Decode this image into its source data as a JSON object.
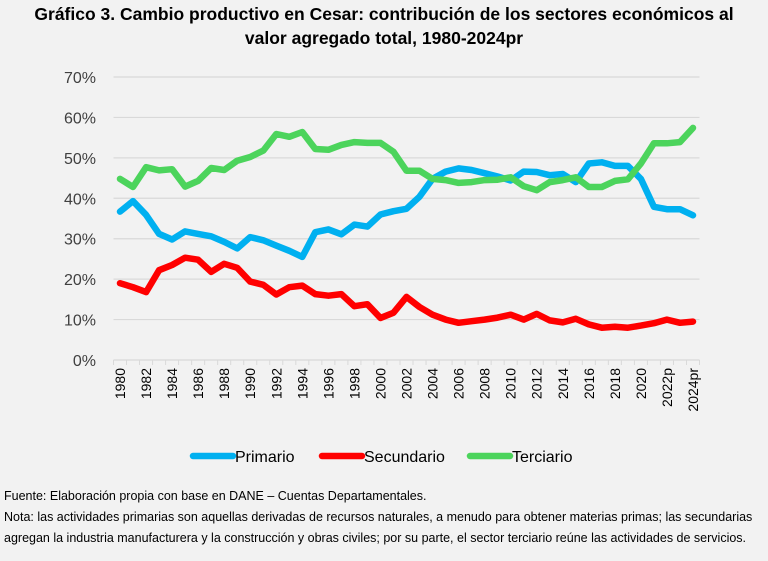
{
  "title_line1": "Gráfico 3. Cambio productivo en Cesar: contribución de los sectores económicos al",
  "title_line2": "valor agregado total, 1980-2024pr",
  "source": "Fuente: Elaboración propia con base en DANE – Cuentas Departamentales.",
  "note": "Nota: las actividades primarias son aquellas derivadas de recursos naturales, a menudo para obtener materias primas; las secundarias agregan la industria manufacturera y la construcción y obras civiles; por su parte, el sector terciario reúne las actividades de servicios.",
  "chart_data": {
    "type": "line",
    "title": "Gráfico 3. Cambio productivo en Cesar: contribución de los sectores económicos al valor agregado total, 1980-2024pr",
    "xlabel": "",
    "ylabel": "",
    "ylim": [
      0,
      70
    ],
    "y_ticks": [
      "0%",
      "10%",
      "20%",
      "30%",
      "40%",
      "50%",
      "60%",
      "70%"
    ],
    "y_tick_values": [
      0,
      10,
      20,
      30,
      40,
      50,
      60,
      70
    ],
    "grid": true,
    "legend_position": "bottom",
    "x": [
      "1980",
      "1981",
      "1982",
      "1983",
      "1984",
      "1985",
      "1986",
      "1987",
      "1988",
      "1989",
      "1990",
      "1991",
      "1992",
      "1993",
      "1994",
      "1995",
      "1996",
      "1997",
      "1998",
      "1999",
      "2000",
      "2001",
      "2002",
      "2003",
      "2004",
      "2005",
      "2006",
      "2007",
      "2008",
      "2009",
      "2010",
      "2011",
      "2012",
      "2013",
      "2014",
      "2015",
      "2016",
      "2017",
      "2018",
      "2019",
      "2020",
      "2021",
      "2022p",
      "2023",
      "2024pr"
    ],
    "x_tick_labels_shown": [
      "1980",
      "1982",
      "1984",
      "1986",
      "1988",
      "1990",
      "1992",
      "1994",
      "1996",
      "1998",
      "2000",
      "2002",
      "2004",
      "2006",
      "2008",
      "2010",
      "2012",
      "2014",
      "2016",
      "2018",
      "2020",
      "2022p",
      "2024pr"
    ],
    "series": [
      {
        "name": "Primario",
        "color": "#00b0f0",
        "values": [
          36.7,
          39.3,
          35.9,
          31.2,
          29.8,
          31.8,
          31.2,
          30.6,
          29.2,
          27.6,
          30.4,
          29.6,
          28.3,
          27.0,
          25.5,
          31.6,
          32.3,
          31.1,
          33.5,
          33.0,
          36.0,
          36.8,
          37.4,
          40.4,
          44.8,
          46.6,
          47.4,
          47.0,
          46.2,
          45.4,
          44.4,
          46.6,
          46.5,
          45.7,
          46.0,
          44.0,
          48.6,
          48.9,
          48.0,
          48.0,
          44.8,
          37.9,
          37.3,
          37.3,
          35.8
        ]
      },
      {
        "name": "Secundario",
        "color": "#ff0000",
        "values": [
          19.0,
          18.0,
          16.8,
          22.2,
          23.5,
          25.3,
          24.8,
          21.8,
          23.8,
          22.8,
          19.4,
          18.6,
          16.2,
          18.0,
          18.4,
          16.3,
          15.9,
          16.3,
          13.3,
          13.8,
          10.4,
          11.7,
          15.6,
          13.1,
          11.2,
          10.0,
          9.2,
          9.6,
          10.0,
          10.5,
          11.2,
          10.0,
          11.4,
          9.8,
          9.3,
          10.2,
          8.8,
          8.0,
          8.2,
          8.0,
          8.5,
          9.1,
          10.0,
          9.2,
          9.5
        ]
      },
      {
        "name": "Terciario",
        "color": "#4cd45c",
        "values": [
          44.8,
          42.8,
          47.7,
          46.9,
          47.2,
          42.9,
          44.3,
          47.5,
          47.0,
          49.3,
          50.2,
          51.8,
          55.9,
          55.2,
          56.4,
          52.2,
          52.0,
          53.2,
          53.9,
          53.7,
          53.7,
          51.5,
          46.8,
          46.8,
          44.8,
          44.5,
          43.8,
          44.0,
          44.5,
          44.6,
          45.2,
          43.0,
          42.0,
          44.0,
          44.5,
          45.2,
          42.8,
          42.8,
          44.3,
          44.7,
          48.6,
          53.6,
          53.6,
          53.9,
          57.4
        ]
      }
    ]
  }
}
